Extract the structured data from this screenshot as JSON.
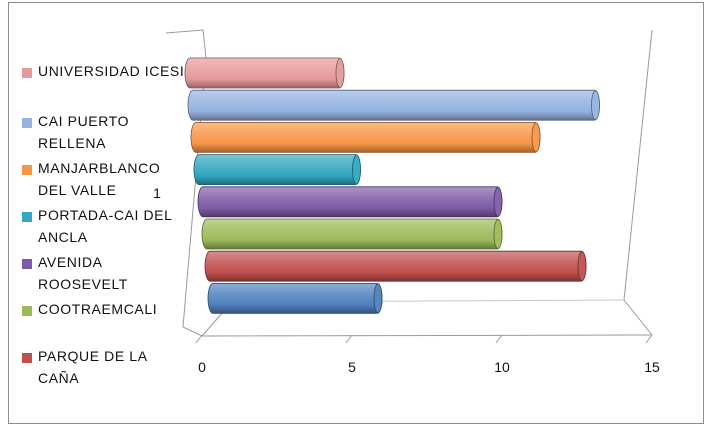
{
  "chart_data": {
    "type": "bar",
    "orientation": "horizontal",
    "style": "3d-cylinder",
    "title": "",
    "xlabel": "",
    "ylabel": "",
    "category_axis_label": "1",
    "xlim": [
      0,
      15
    ],
    "x_ticks": [
      "0",
      "5",
      "10",
      "15"
    ],
    "legend_position": "left",
    "gridlines": true,
    "series": [
      {
        "name": "UNIVERSIDAD ICESI",
        "value": 4.8,
        "color": "#e6999b"
      },
      {
        "name": "CAI PUERTO RELLENA",
        "value": 13.3,
        "color": "#95b3e0"
      },
      {
        "name": "MANJARBLANCO DEL VALLE",
        "value": 11.3,
        "color": "#f79646"
      },
      {
        "name": "PORTADA-CAI DEL ANCLA",
        "value": 5.3,
        "color": "#31a7c0"
      },
      {
        "name": "AVENIDA ROOSEVELT",
        "value": 10.0,
        "color": "#7d5ca6"
      },
      {
        "name": "COOTRAEMCALI",
        "value": 10.0,
        "color": "#9bbb59"
      },
      {
        "name": "PARQUE DE LA CAÑA",
        "value": 12.8,
        "color": "#c0504d"
      },
      {
        "name": "",
        "value": 6.0,
        "color": "#4f81bd"
      }
    ]
  }
}
